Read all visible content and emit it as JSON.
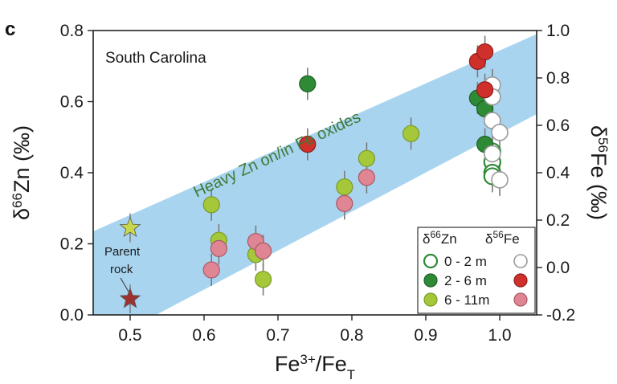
{
  "panel_label": "c",
  "chart_data": {
    "type": "scatter",
    "region_label": "South Carolina",
    "band_label": "Heavy Zn on/in Fe oxides",
    "parent_label_line1": "Parent",
    "parent_label_line2": "rock",
    "xlabel": {
      "base": "Fe",
      "sup": "3+",
      "mid": "/Fe",
      "sub": "T"
    },
    "ylabel_left": {
      "base": "δ",
      "sup": "66",
      "rest": "Zn (‰)"
    },
    "ylabel_right": {
      "base": "δ",
      "sup": "56",
      "rest": "Fe (‰)"
    },
    "xlim": [
      0.45,
      1.05
    ],
    "ylim_left": [
      0.0,
      0.8
    ],
    "ylim_right": [
      -0.2,
      1.0
    ],
    "xticks": [
      "0.5",
      "0.6",
      "0.7",
      "0.8",
      "0.9",
      "1.0"
    ],
    "yticks_left": [
      "0.0",
      "0.2",
      "0.4",
      "0.6",
      "0.8"
    ],
    "yticks_right": [
      "-0.2",
      "0.0",
      "0.2",
      "0.4",
      "0.6",
      "0.8",
      "1.0"
    ],
    "colors": {
      "band": "#a9d4ef",
      "green_0_2": "#2f8a35",
      "green_2_6": "#2f8a35",
      "green_6_11": "#a4c83a",
      "red_2_6": "#d0302b",
      "pink_6_11": "#df8593",
      "star_light": "#c9d84a",
      "star_dark": "#9e3030",
      "error_bar": "#7a7a7a"
    },
    "legend": {
      "header_zn": {
        "base": "δ",
        "sup": "66",
        "rest": "Zn"
      },
      "header_fe": {
        "base": "δ",
        "sup": "56",
        "rest": "Fe"
      },
      "entries": [
        {
          "label": "0 - 2 m",
          "zn_style": "open-green",
          "fe_style": "open-grey"
        },
        {
          "label": "2 - 6 m",
          "zn_style": "dark-green",
          "fe_style": "red"
        },
        {
          "label": "6 - 11m",
          "zn_style": "light-green",
          "fe_style": "pink"
        }
      ]
    },
    "series": [
      {
        "name": "δ66Zn 0 - 2 m",
        "axis": "left",
        "style": "open-green",
        "points": [
          [
            0.99,
            0.46
          ],
          [
            0.99,
            0.43
          ],
          [
            0.99,
            0.4
          ],
          [
            0.99,
            0.39
          ]
        ]
      },
      {
        "name": "δ66Zn 2 - 6 m",
        "axis": "left",
        "style": "dark-green",
        "points": [
          [
            0.74,
            0.65
          ],
          [
            0.97,
            0.61
          ],
          [
            0.98,
            0.58
          ],
          [
            0.98,
            0.48
          ]
        ]
      },
      {
        "name": "δ66Zn 6 - 11m",
        "axis": "left",
        "style": "light-green",
        "points": [
          [
            0.61,
            0.31
          ],
          [
            0.62,
            0.21
          ],
          [
            0.67,
            0.17
          ],
          [
            0.68,
            0.1
          ],
          [
            0.79,
            0.36
          ],
          [
            0.82,
            0.44
          ],
          [
            0.88,
            0.51
          ]
        ]
      },
      {
        "name": "δ56Fe 0 - 2 m",
        "axis": "right",
        "style": "open-grey",
        "points": [
          [
            0.99,
            0.77
          ],
          [
            0.99,
            0.72
          ],
          [
            0.99,
            0.62
          ],
          [
            1.0,
            0.57
          ],
          [
            0.99,
            0.48
          ],
          [
            1.0,
            0.37
          ]
        ]
      },
      {
        "name": "δ56Fe 2 - 6 m",
        "axis": "right",
        "style": "red",
        "points": [
          [
            0.74,
            0.52
          ],
          [
            0.97,
            0.87
          ],
          [
            0.98,
            0.91
          ],
          [
            0.98,
            0.75
          ]
        ]
      },
      {
        "name": "δ56Fe 6 - 11m",
        "axis": "right",
        "style": "pink",
        "points": [
          [
            0.61,
            -0.01
          ],
          [
            0.62,
            0.08
          ],
          [
            0.67,
            0.11
          ],
          [
            0.68,
            0.07
          ],
          [
            0.79,
            0.27
          ],
          [
            0.82,
            0.38
          ]
        ]
      }
    ],
    "parent_rock": [
      {
        "axis": "left",
        "style": "star-light",
        "x": 0.5,
        "y": 0.245
      },
      {
        "axis": "left",
        "style": "star-dark",
        "x": 0.5,
        "y": 0.045
      }
    ],
    "band_edges": {
      "upper": [
        [
          0.45,
          0.235
        ],
        [
          1.05,
          0.79
        ]
      ],
      "lower": [
        [
          0.535,
          0.0
        ],
        [
          1.05,
          0.565
        ]
      ]
    }
  }
}
